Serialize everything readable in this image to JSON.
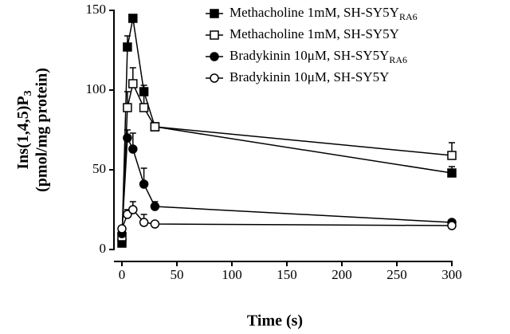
{
  "chart_data": {
    "type": "line",
    "xlabel": "Time (s)",
    "ylabel": {
      "text": "Ins(1,4,5)P",
      "subscript": "3",
      "line2": "(pmol/mg protein)"
    },
    "xlim": [
      0,
      300
    ],
    "xticks": [
      0,
      50,
      100,
      150,
      200,
      250,
      300
    ],
    "ylim": [
      0,
      150
    ],
    "yticks": [
      0,
      50,
      100,
      150
    ],
    "x": [
      0,
      5,
      10,
      20,
      30,
      300
    ],
    "legend": "upper right",
    "series": [
      {
        "name": "Methacholine 1mM, SH-SY5Y",
        "name_subscript": "RA6",
        "color": "#000000",
        "marker": "square",
        "filled": true,
        "values": [
          4,
          127,
          145,
          99,
          77,
          48
        ],
        "errors": [
          null,
          7,
          2,
          4,
          null,
          4
        ]
      },
      {
        "name": "Methacholine 1mM, SH-SY5Y",
        "color": "#000000",
        "marker": "square",
        "filled": false,
        "values": [
          8,
          89,
          104,
          89,
          77,
          59
        ],
        "errors": [
          null,
          10,
          10,
          10,
          null,
          8
        ]
      },
      {
        "name": "Bradykinin 10μM, SH-SY5Y",
        "name_subscript": "RA6",
        "color": "#000000",
        "marker": "circle",
        "filled": true,
        "values": [
          10,
          70,
          63,
          41,
          27,
          17
        ],
        "errors": [
          null,
          5,
          10,
          10,
          3,
          null
        ]
      },
      {
        "name": "Bradykinin 10μM, SH-SY5Y",
        "color": "#000000",
        "marker": "circle",
        "filled": false,
        "values": [
          13,
          22,
          25,
          17,
          16,
          15
        ],
        "errors": [
          null,
          3,
          5,
          5,
          null,
          3
        ]
      }
    ]
  }
}
